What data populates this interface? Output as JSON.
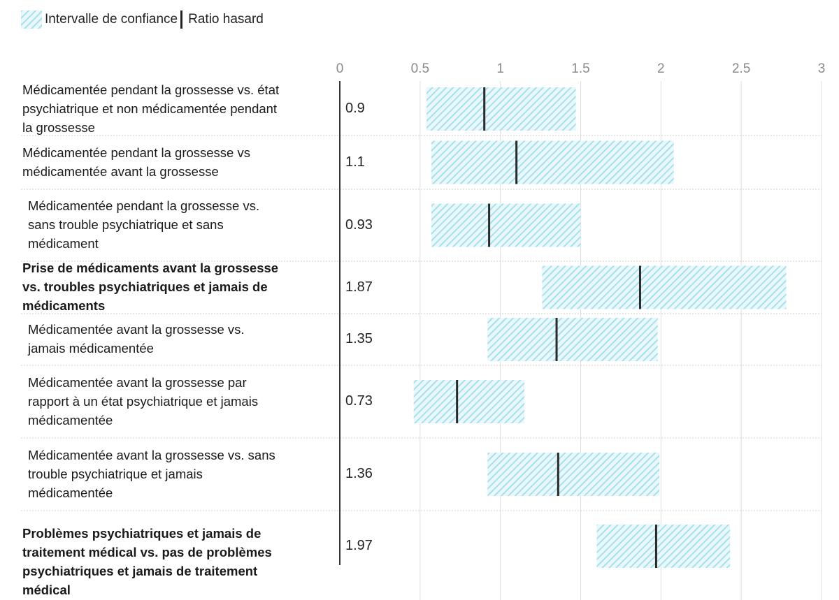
{
  "legend": {
    "ci_label": "Intervalle de confiance",
    "hr_label": "Ratio hasard",
    "ci_color": "#bfe9f3",
    "hr_color": "#2a2a2a"
  },
  "chart_data": {
    "type": "forest",
    "xlim": [
      0,
      3
    ],
    "ticks": [
      {
        "value": 0,
        "label": "0"
      },
      {
        "value": 0.5,
        "label": "0.5"
      },
      {
        "value": 1,
        "label": "1"
      },
      {
        "value": 1.5,
        "label": "1.5"
      },
      {
        "value": 2,
        "label": "2"
      },
      {
        "value": 2.5,
        "label": "2.5"
      },
      {
        "value": 3,
        "label": "3"
      }
    ],
    "grid": true,
    "rows": [
      {
        "lines": [
          "Médicamentée pendant la grossesse vs. état",
          "psychiatrique et non médicamentée pendant",
          "la grossesse"
        ],
        "bold": false,
        "indent": false,
        "hr": 0.9,
        "hr_label": "0.9",
        "ci": [
          0.54,
          1.47
        ]
      },
      {
        "lines": [
          "Médicamentée pendant la grossesse vs",
          "médicamentée avant la grossesse"
        ],
        "bold": false,
        "indent": false,
        "hr": 1.1,
        "hr_label": "1.1",
        "ci": [
          0.57,
          2.08
        ]
      },
      {
        "lines": [
          "Médicamentée pendant la grossesse vs.",
          "sans trouble psychiatrique et sans",
          "médicament"
        ],
        "bold": false,
        "indent": true,
        "hr": 0.93,
        "hr_label": "0.93",
        "ci": [
          0.57,
          1.5
        ]
      },
      {
        "lines": [
          "Prise de médicaments avant la grossesse",
          "vs. troubles psychiatriques et jamais de",
          "médicaments"
        ],
        "bold": true,
        "indent": false,
        "hr": 1.87,
        "hr_label": "1.87",
        "ci": [
          1.26,
          2.78
        ]
      },
      {
        "lines": [
          "Médicamentée avant la grossesse vs.",
          "jamais médicamentée"
        ],
        "bold": false,
        "indent": true,
        "hr": 1.35,
        "hr_label": "1.35",
        "ci": [
          0.92,
          1.98
        ]
      },
      {
        "lines": [
          "Médicamentée avant la grossesse par",
          "rapport à un état psychiatrique et jamais",
          "médicamentée"
        ],
        "bold": false,
        "indent": true,
        "hr": 0.73,
        "hr_label": "0.73",
        "ci": [
          0.46,
          1.15
        ]
      },
      {
        "lines": [
          "Médicamentée avant la grossesse vs. sans",
          "trouble psychiatrique et jamais",
          "médicamentée"
        ],
        "bold": false,
        "indent": true,
        "hr": 1.36,
        "hr_label": "1.36",
        "ci": [
          0.92,
          1.99
        ]
      },
      {
        "lines": [
          "Problèmes psychiatriques et jamais de",
          "traitement médical vs. pas de problèmes",
          "psychiatriques et jamais de traitement",
          "médical"
        ],
        "bold": true,
        "indent": false,
        "hr": 1.97,
        "hr_label": "1.97",
        "ci": [
          1.6,
          2.43
        ]
      }
    ]
  }
}
